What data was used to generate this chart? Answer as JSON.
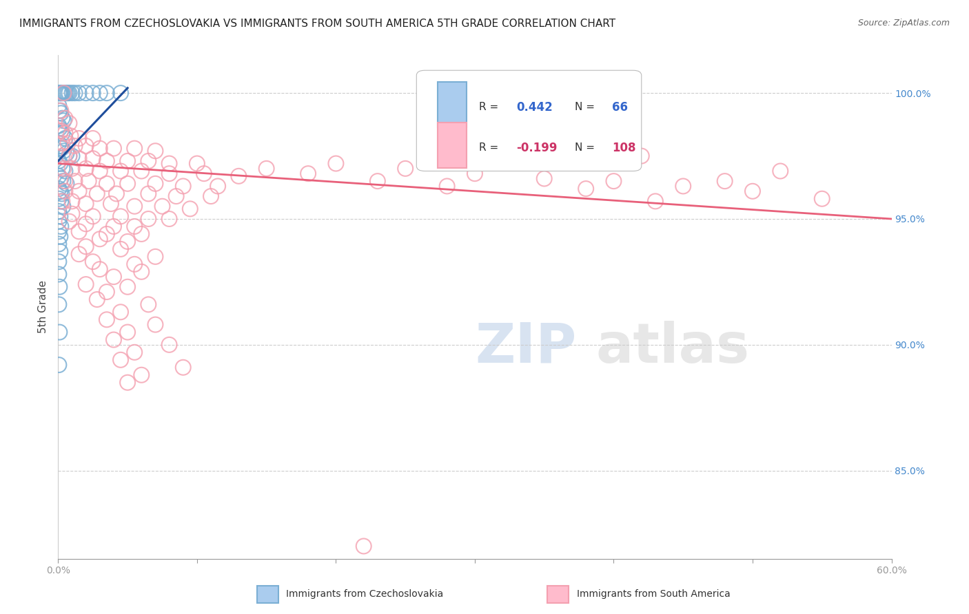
{
  "title": "IMMIGRANTS FROM CZECHOSLOVAKIA VS IMMIGRANTS FROM SOUTH AMERICA 5TH GRADE CORRELATION CHART",
  "source": "Source: ZipAtlas.com",
  "ylabel": "5th Grade",
  "xmin": 0.0,
  "xmax": 60.0,
  "ymin": 81.5,
  "ymax": 101.5,
  "yticks": [
    85.0,
    90.0,
    95.0,
    100.0
  ],
  "blue_color": "#7BAFD4",
  "pink_color": "#F4A0B0",
  "blue_line_color": "#1F4E9C",
  "pink_line_color": "#E8607A",
  "blue_dots": [
    [
      0.05,
      100.0
    ],
    [
      0.1,
      100.0
    ],
    [
      0.15,
      100.0
    ],
    [
      0.2,
      100.0
    ],
    [
      0.25,
      100.0
    ],
    [
      0.3,
      100.0
    ],
    [
      0.4,
      100.0
    ],
    [
      0.5,
      100.0
    ],
    [
      0.6,
      100.0
    ],
    [
      0.7,
      100.0
    ],
    [
      0.8,
      100.0
    ],
    [
      1.0,
      100.0
    ],
    [
      1.2,
      100.0
    ],
    [
      1.5,
      100.0
    ],
    [
      2.0,
      100.0
    ],
    [
      2.5,
      100.0
    ],
    [
      3.0,
      100.0
    ],
    [
      3.5,
      100.0
    ],
    [
      4.5,
      100.0
    ],
    [
      0.05,
      99.5
    ],
    [
      0.1,
      99.3
    ],
    [
      0.2,
      99.2
    ],
    [
      0.3,
      99.0
    ],
    [
      0.4,
      98.9
    ],
    [
      0.05,
      98.7
    ],
    [
      0.1,
      98.6
    ],
    [
      0.2,
      98.5
    ],
    [
      0.3,
      98.4
    ],
    [
      0.5,
      98.2
    ],
    [
      0.05,
      98.0
    ],
    [
      0.15,
      97.9
    ],
    [
      0.25,
      97.8
    ],
    [
      0.4,
      97.7
    ],
    [
      0.6,
      97.6
    ],
    [
      0.8,
      97.5
    ],
    [
      1.0,
      97.5
    ],
    [
      0.05,
      97.3
    ],
    [
      0.15,
      97.2
    ],
    [
      0.3,
      97.0
    ],
    [
      0.5,
      96.9
    ],
    [
      0.05,
      96.7
    ],
    [
      0.2,
      96.6
    ],
    [
      0.35,
      96.5
    ],
    [
      0.6,
      96.4
    ],
    [
      0.05,
      96.2
    ],
    [
      0.15,
      96.1
    ],
    [
      0.25,
      96.0
    ],
    [
      0.05,
      95.8
    ],
    [
      0.2,
      95.7
    ],
    [
      0.35,
      95.5
    ],
    [
      0.05,
      95.3
    ],
    [
      0.15,
      95.1
    ],
    [
      0.05,
      94.9
    ],
    [
      0.2,
      94.7
    ],
    [
      0.05,
      94.5
    ],
    [
      0.15,
      94.3
    ],
    [
      0.05,
      94.0
    ],
    [
      0.15,
      93.7
    ],
    [
      0.05,
      93.3
    ],
    [
      0.05,
      92.8
    ],
    [
      0.1,
      92.3
    ],
    [
      0.05,
      91.6
    ],
    [
      0.1,
      90.5
    ],
    [
      0.05,
      89.2
    ]
  ],
  "pink_dots": [
    [
      0.4,
      100.0
    ],
    [
      0.2,
      99.3
    ],
    [
      0.5,
      99.0
    ],
    [
      0.8,
      98.8
    ],
    [
      0.2,
      98.5
    ],
    [
      0.5,
      98.4
    ],
    [
      0.9,
      98.3
    ],
    [
      1.5,
      98.2
    ],
    [
      2.5,
      98.2
    ],
    [
      0.3,
      98.0
    ],
    [
      0.7,
      98.0
    ],
    [
      1.2,
      97.9
    ],
    [
      2.0,
      97.9
    ],
    [
      3.0,
      97.8
    ],
    [
      4.0,
      97.8
    ],
    [
      5.5,
      97.8
    ],
    [
      7.0,
      97.7
    ],
    [
      0.3,
      97.5
    ],
    [
      0.8,
      97.5
    ],
    [
      1.5,
      97.4
    ],
    [
      2.5,
      97.4
    ],
    [
      3.5,
      97.3
    ],
    [
      5.0,
      97.3
    ],
    [
      6.5,
      97.3
    ],
    [
      8.0,
      97.2
    ],
    [
      10.0,
      97.2
    ],
    [
      0.4,
      97.0
    ],
    [
      1.0,
      97.0
    ],
    [
      2.0,
      97.0
    ],
    [
      3.0,
      96.9
    ],
    [
      4.5,
      96.9
    ],
    [
      6.0,
      96.9
    ],
    [
      8.0,
      96.8
    ],
    [
      10.5,
      96.8
    ],
    [
      13.0,
      96.7
    ],
    [
      0.5,
      96.5
    ],
    [
      1.2,
      96.5
    ],
    [
      2.2,
      96.5
    ],
    [
      3.5,
      96.4
    ],
    [
      5.0,
      96.4
    ],
    [
      7.0,
      96.4
    ],
    [
      9.0,
      96.3
    ],
    [
      11.5,
      96.3
    ],
    [
      0.5,
      96.1
    ],
    [
      1.5,
      96.1
    ],
    [
      2.8,
      96.0
    ],
    [
      4.2,
      96.0
    ],
    [
      6.5,
      96.0
    ],
    [
      8.5,
      95.9
    ],
    [
      11.0,
      95.9
    ],
    [
      0.3,
      95.7
    ],
    [
      1.0,
      95.7
    ],
    [
      2.0,
      95.6
    ],
    [
      3.8,
      95.6
    ],
    [
      5.5,
      95.5
    ],
    [
      7.5,
      95.5
    ],
    [
      9.5,
      95.4
    ],
    [
      1.0,
      95.2
    ],
    [
      2.5,
      95.1
    ],
    [
      4.5,
      95.1
    ],
    [
      6.5,
      95.0
    ],
    [
      8.0,
      95.0
    ],
    [
      0.8,
      94.9
    ],
    [
      2.0,
      94.8
    ],
    [
      4.0,
      94.7
    ],
    [
      5.5,
      94.7
    ],
    [
      1.5,
      94.5
    ],
    [
      3.5,
      94.4
    ],
    [
      6.0,
      94.4
    ],
    [
      3.0,
      94.2
    ],
    [
      5.0,
      94.1
    ],
    [
      2.0,
      93.9
    ],
    [
      4.5,
      93.8
    ],
    [
      1.5,
      93.6
    ],
    [
      7.0,
      93.5
    ],
    [
      2.5,
      93.3
    ],
    [
      5.5,
      93.2
    ],
    [
      3.0,
      93.0
    ],
    [
      6.0,
      92.9
    ],
    [
      4.0,
      92.7
    ],
    [
      2.0,
      92.4
    ],
    [
      5.0,
      92.3
    ],
    [
      3.5,
      92.1
    ],
    [
      2.8,
      91.8
    ],
    [
      6.5,
      91.6
    ],
    [
      4.5,
      91.3
    ],
    [
      3.5,
      91.0
    ],
    [
      7.0,
      90.8
    ],
    [
      5.0,
      90.5
    ],
    [
      4.0,
      90.2
    ],
    [
      8.0,
      90.0
    ],
    [
      5.5,
      89.7
    ],
    [
      4.5,
      89.4
    ],
    [
      9.0,
      89.1
    ],
    [
      6.0,
      88.8
    ],
    [
      5.0,
      88.5
    ],
    [
      20.0,
      97.2
    ],
    [
      25.0,
      97.0
    ],
    [
      30.0,
      96.8
    ],
    [
      35.0,
      96.6
    ],
    [
      40.0,
      96.5
    ],
    [
      45.0,
      96.3
    ],
    [
      50.0,
      96.1
    ],
    [
      55.0,
      95.8
    ],
    [
      18.0,
      96.8
    ],
    [
      23.0,
      96.5
    ],
    [
      28.0,
      96.3
    ],
    [
      15.0,
      97.0
    ],
    [
      38.0,
      96.2
    ],
    [
      43.0,
      95.7
    ],
    [
      48.0,
      96.5
    ],
    [
      52.0,
      96.9
    ],
    [
      42.0,
      97.5
    ],
    [
      22.0,
      82.0
    ]
  ],
  "blue_line_x": [
    0.0,
    5.0
  ],
  "blue_line_y": [
    97.3,
    100.2
  ],
  "pink_line_x": [
    0.0,
    60.0
  ],
  "pink_line_y": [
    97.2,
    95.0
  ]
}
